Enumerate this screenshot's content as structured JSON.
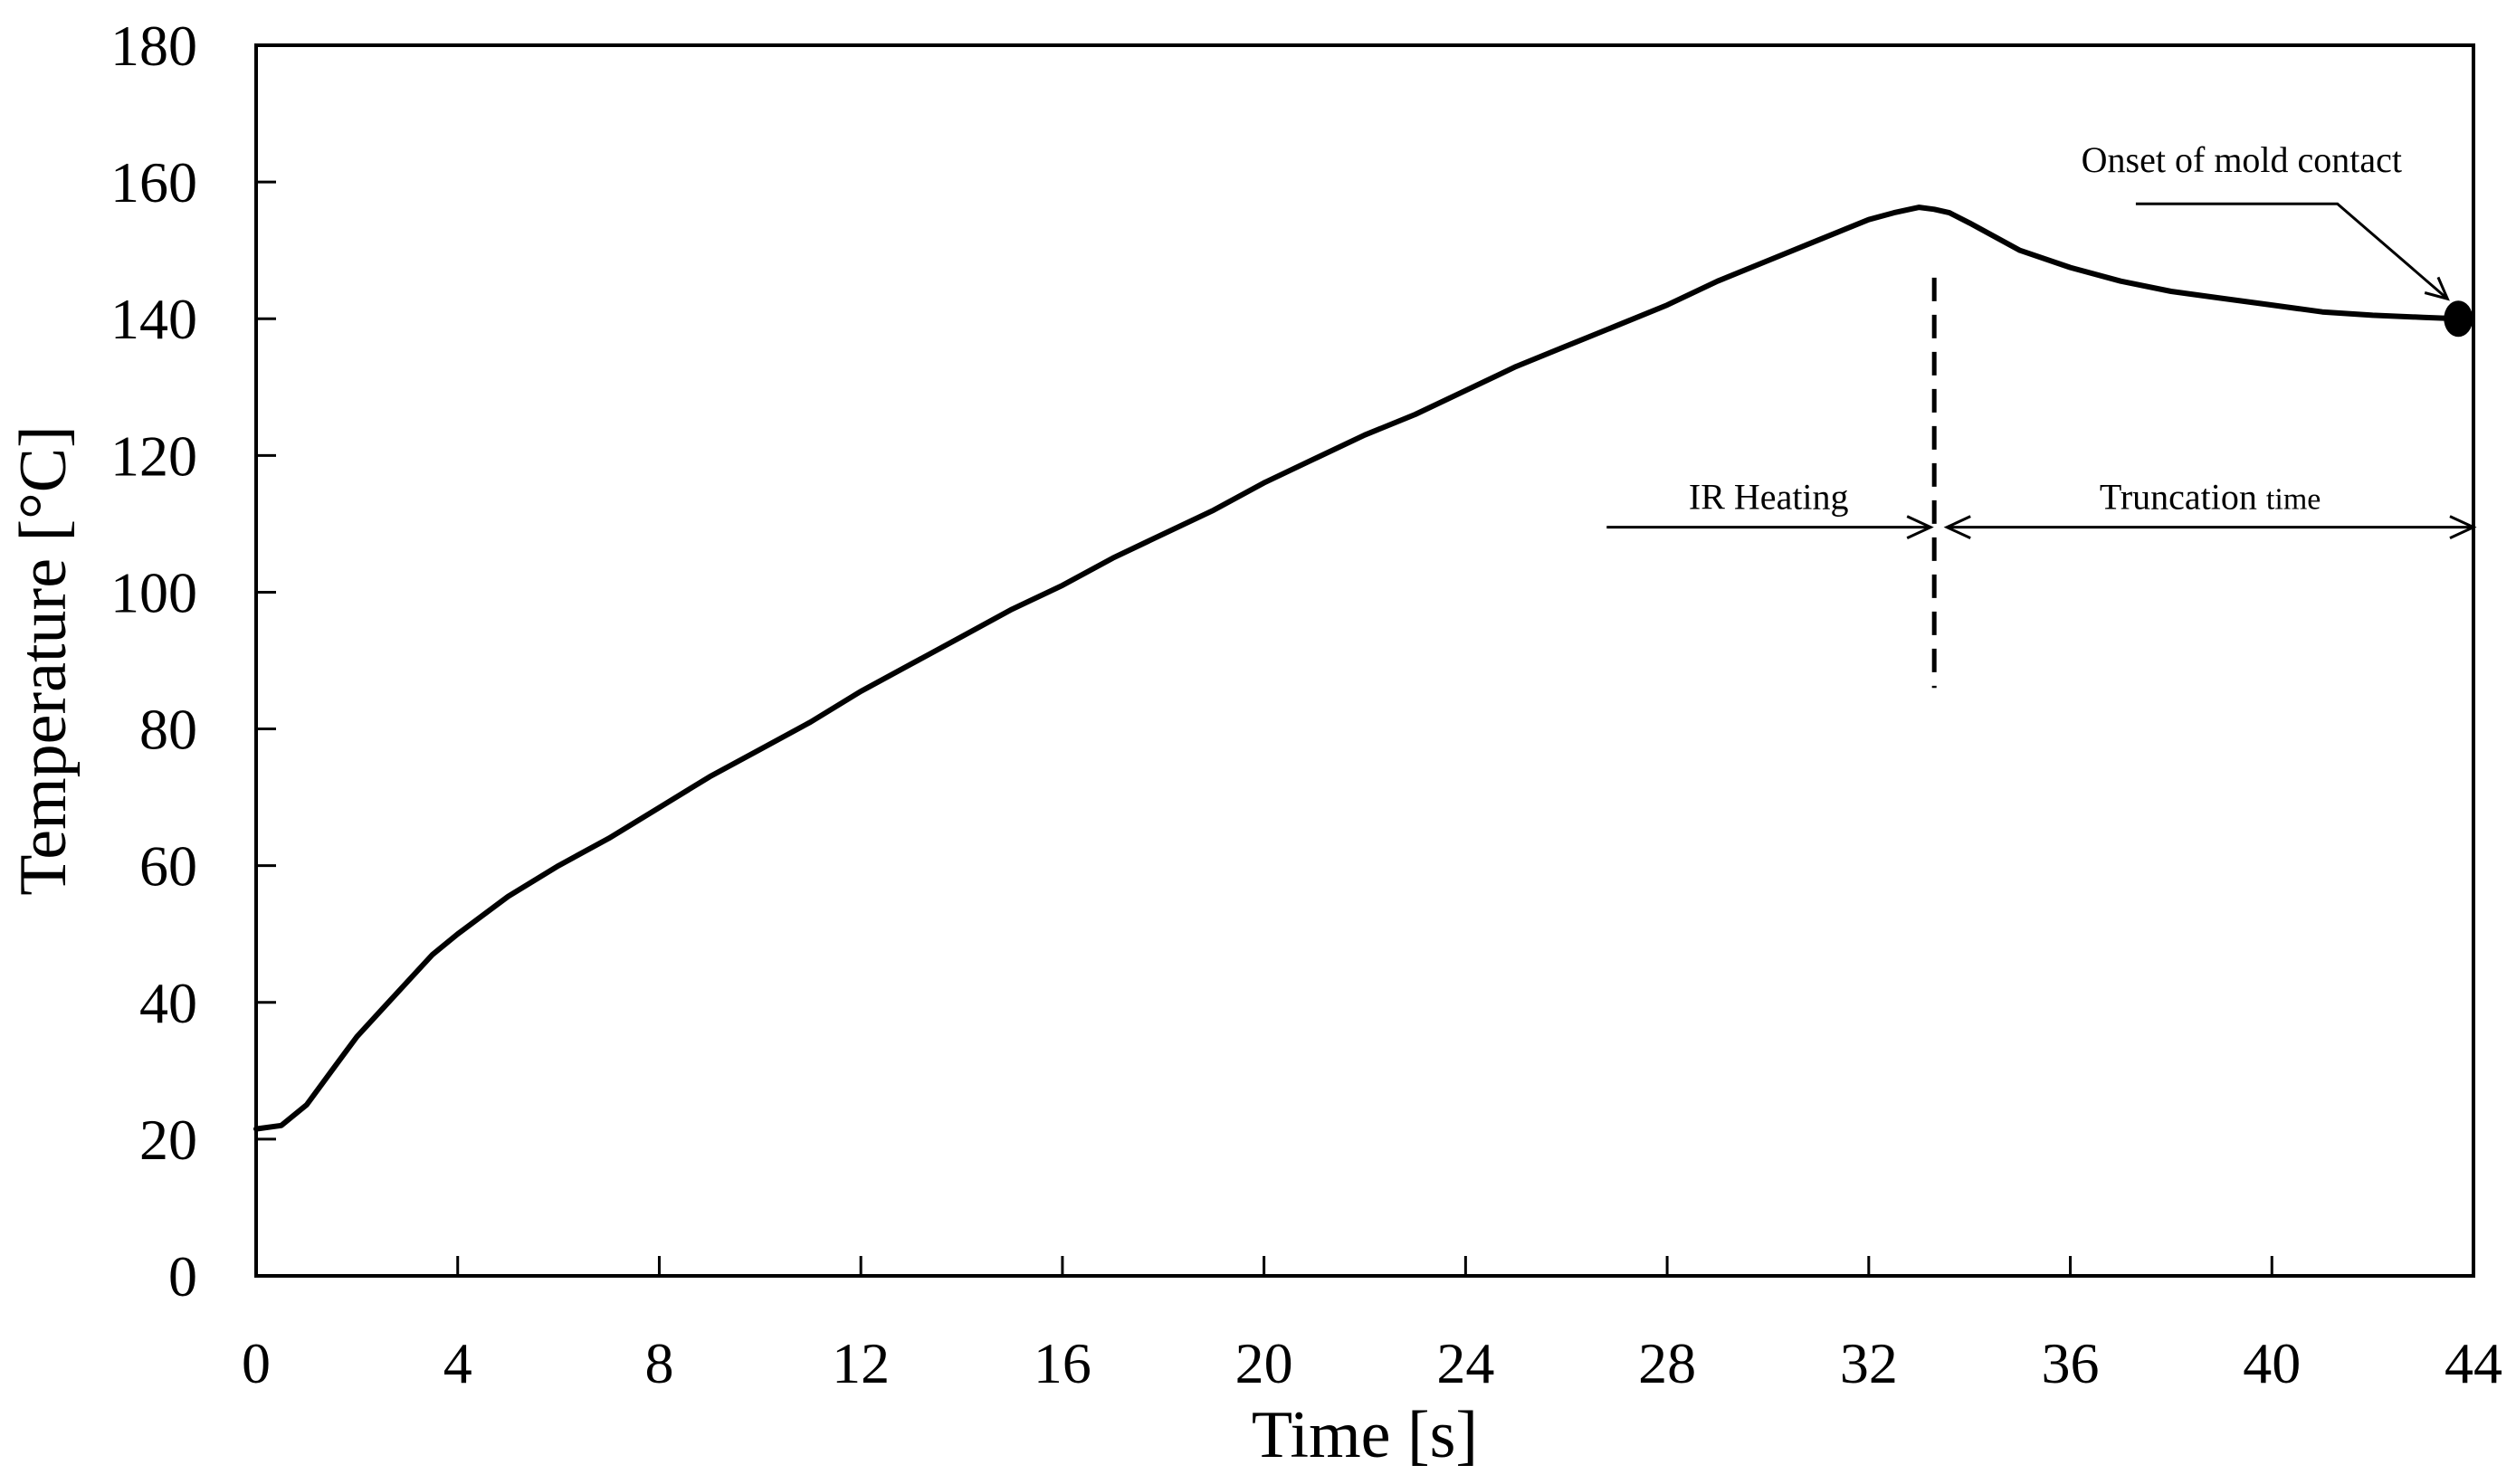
{
  "chart_data": {
    "type": "line",
    "title": "",
    "xlabel": "Time [s]",
    "ylabel": "Temperature [°C]",
    "xlim": [
      0,
      44
    ],
    "ylim": [
      0,
      180
    ],
    "xticks": [
      0,
      4,
      8,
      12,
      16,
      20,
      24,
      28,
      32,
      36,
      40,
      44
    ],
    "yticks": [
      0,
      20,
      40,
      60,
      80,
      100,
      120,
      140,
      160,
      180
    ],
    "grid": false,
    "legend": "none",
    "series": [
      {
        "color": "#000000",
        "x": [
          0,
          0.5,
          1,
          1.5,
          2,
          2.5,
          3,
          3.5,
          4,
          5,
          6,
          7,
          8,
          9,
          10,
          11,
          12,
          13,
          14,
          15,
          16,
          17,
          18,
          19,
          20,
          21,
          22,
          23,
          24,
          25,
          26,
          27,
          28,
          29,
          30,
          31,
          32,
          32.5,
          33,
          33.3,
          33.6,
          34,
          35,
          36,
          37,
          38,
          39,
          40,
          41,
          42,
          43,
          43.7
        ],
        "y": [
          21.5,
          22,
          25,
          30,
          35,
          39,
          43,
          47,
          50,
          55.5,
          60,
          64,
          68.5,
          73,
          77,
          81,
          85.5,
          89.5,
          93.5,
          97.5,
          101,
          105,
          108.5,
          112,
          116,
          119.5,
          123,
          126,
          129.5,
          133,
          136,
          139,
          142,
          145.5,
          148.5,
          151.5,
          154.5,
          155.5,
          156.3,
          156,
          155.5,
          154,
          150,
          147.5,
          145.5,
          144,
          143,
          142,
          141,
          140.5,
          140.2,
          140
        ]
      }
    ],
    "annotations": {
      "onset_label": "Onset of mold contact",
      "onset_point": {
        "x": 43.7,
        "y": 140
      },
      "ir_heating_label": "IR Heating",
      "truncation_label_main": "Truncation",
      "truncation_label_small": "time",
      "divider_x": 33.3
    }
  }
}
